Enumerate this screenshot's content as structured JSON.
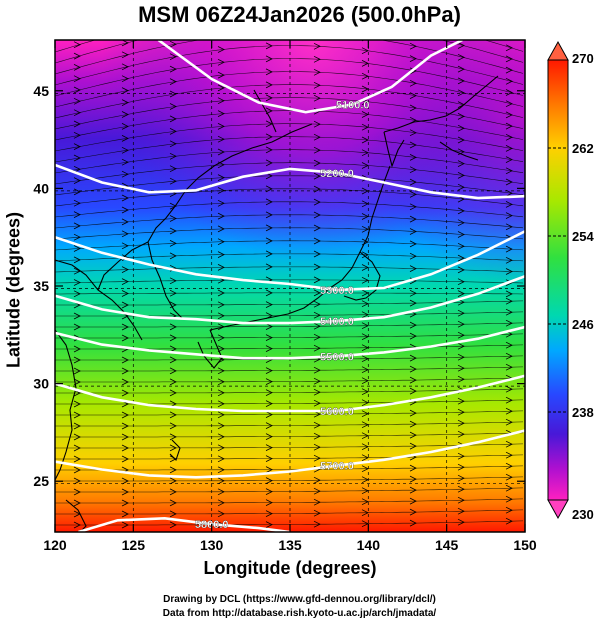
{
  "title": "MSM 06Z24Jan2026 (500.0hPa)",
  "map": {
    "xlabel": "Longitude (degrees)",
    "ylabel": "Latitude  (degrees)",
    "xlim": [
      120,
      150
    ],
    "ylim": [
      22.4,
      47.6
    ],
    "xticks": [
      "120",
      "125",
      "130",
      "135",
      "140",
      "145",
      "150"
    ],
    "yticks": [
      "25",
      "30",
      "35",
      "40",
      "45"
    ],
    "xtick_values": [
      120,
      125,
      130,
      135,
      140,
      145,
      150
    ],
    "ytick_values": [
      25,
      30,
      35,
      40,
      45
    ],
    "field_colors_high_to_low": [
      "#ff1800",
      "#ff7800",
      "#ffd000",
      "#a8e800",
      "#30e040",
      "#00d8b0",
      "#00a8ff",
      "#2848ff",
      "#4818d8",
      "#b010d0",
      "#ff20c0"
    ],
    "streamline_color": "#000000",
    "contour_color": "#ffffff",
    "contours": [
      {
        "label": "5100.0",
        "points": [
          [
            126.6,
            47.6
          ],
          [
            130,
            45.6
          ],
          [
            133,
            44.4
          ],
          [
            136,
            43.9
          ],
          [
            139,
            44.3
          ],
          [
            141.5,
            45.2
          ],
          [
            144,
            46.8
          ],
          [
            146,
            47.6
          ]
        ]
      },
      {
        "label": "5200.0",
        "points": [
          [
            120,
            41.2
          ],
          [
            123,
            40.3
          ],
          [
            126,
            39.8
          ],
          [
            129,
            39.9
          ],
          [
            132,
            40.6
          ],
          [
            135,
            41.0
          ],
          [
            138,
            40.8
          ],
          [
            141,
            40.3
          ],
          [
            144,
            39.8
          ],
          [
            147,
            39.5
          ],
          [
            150,
            39.6
          ]
        ]
      },
      {
        "label": "5300.0",
        "points": [
          [
            120,
            37.5
          ],
          [
            123,
            36.7
          ],
          [
            126,
            36.1
          ],
          [
            129,
            35.6
          ],
          [
            132,
            35.3
          ],
          [
            135,
            35.1
          ],
          [
            138,
            34.8
          ],
          [
            141,
            34.9
          ],
          [
            144,
            35.6
          ],
          [
            147,
            36.6
          ],
          [
            150,
            37.8
          ]
        ]
      },
      {
        "label": "5400.0",
        "points": [
          [
            120,
            34.5
          ],
          [
            123,
            33.8
          ],
          [
            126,
            33.4
          ],
          [
            129,
            33.3
          ],
          [
            132,
            33.1
          ],
          [
            135,
            33.1
          ],
          [
            138,
            33.2
          ],
          [
            141,
            33.4
          ],
          [
            144,
            33.9
          ],
          [
            147,
            34.6
          ],
          [
            150,
            35.5
          ]
        ]
      },
      {
        "label": "5500.0",
        "points": [
          [
            120,
            32.6
          ],
          [
            123,
            32.0
          ],
          [
            126,
            31.7
          ],
          [
            129,
            31.5
          ],
          [
            132,
            31.3
          ],
          [
            135,
            31.3
          ],
          [
            138,
            31.4
          ],
          [
            141,
            31.6
          ],
          [
            144,
            31.9
          ],
          [
            147,
            32.3
          ],
          [
            150,
            32.9
          ]
        ]
      },
      {
        "label": "5600.0",
        "points": [
          [
            120,
            30.0
          ],
          [
            123,
            29.3
          ],
          [
            126,
            28.9
          ],
          [
            129,
            28.7
          ],
          [
            132,
            28.6
          ],
          [
            135,
            28.6
          ],
          [
            138,
            28.6
          ],
          [
            141,
            28.9
          ],
          [
            144,
            29.3
          ],
          [
            147,
            29.8
          ],
          [
            150,
            30.4
          ]
        ]
      },
      {
        "label": "5700.0",
        "points": [
          [
            120,
            26.0
          ],
          [
            123,
            25.6
          ],
          [
            126,
            25.3
          ],
          [
            129,
            25.2
          ],
          [
            132,
            25.3
          ],
          [
            135,
            25.5
          ],
          [
            138,
            25.8
          ],
          [
            141,
            26.1
          ],
          [
            144,
            26.5
          ],
          [
            147,
            27.0
          ],
          [
            150,
            27.6
          ]
        ]
      },
      {
        "label": "5800.0",
        "points": [
          [
            121.5,
            22.4
          ],
          [
            124,
            23.0
          ],
          [
            127,
            23.1
          ],
          [
            130,
            22.8
          ],
          [
            133,
            22.6
          ],
          [
            135,
            22.4
          ]
        ]
      }
    ]
  },
  "colorbar": {
    "title": "",
    "ticks": [
      "270",
      "262",
      "254",
      "246",
      "238",
      "230"
    ],
    "tick_values": [
      270,
      262,
      254,
      246,
      238,
      230
    ],
    "min": 230,
    "max": 270
  },
  "credits": [
    "Drawing by DCL (https://www.gfd-dennou.org/library/dcl/)",
    "Data from http://database.rish.kyoto-u.ac.jp/arch/jmadata/"
  ]
}
